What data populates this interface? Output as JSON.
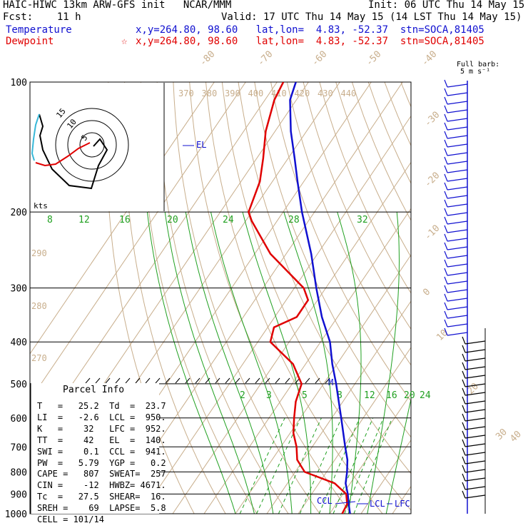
{
  "header": {
    "line1_left": "HAIC-HIWC 13km ARW-GFS init   NCAR/MMM",
    "line1_right": "Init: 06 UTC Thu 14 May 15",
    "line2_left": "Fcst:    11 h",
    "line2_right": "Valid: 17 UTC Thu 14 May 15 (14 LST Thu 14 May 15)",
    "temp_label": "Temperature",
    "temp_info": "x,y=264.80, 98.60   lat,lon=  4.83, -52.37  stn=SOCA,81405",
    "dew_label": "Dewpoint",
    "dew_info": "x,y=264.80, 98.60   lat,lon=  4.83, -52.37  stn=SOCA,81405",
    "dew_marker": "☆"
  },
  "barb_legend": {
    "line1": "Full barb:",
    "line2": "5 m s⁻¹"
  },
  "hodograph": {
    "units": "kts",
    "rings": [
      "5",
      "10",
      "15"
    ]
  },
  "parcel": {
    "title": "Parcel Info",
    "rows": [
      "T   =   25.2  Td  =  23.7",
      "LI  =   -2.6  LCL =  950.",
      "K   =    32   LFC =  952.",
      "TT  =    42   EL  =  140.",
      "SWI =    0.1  CCL =  941.",
      "PW  =   5.79  YGP =   0.2",
      "CAPE =   807  SWEAT=  257",
      "CIN =    -12  HWBZ= 4671.",
      "Tc  =   27.5  SHEAR=  16.",
      "SREH =    69  LAPSE=  5.8",
      "CELL = 101/14"
    ]
  },
  "chart_data": {
    "type": "skew-t log-p sounding",
    "y_axis": {
      "scale": "log",
      "ticks": [
        "100",
        "200",
        "300",
        "400",
        "500",
        "600",
        "700",
        "800",
        "900",
        "1000"
      ],
      "range_hPa": [
        100,
        1000
      ]
    },
    "isotherm_labels": [
      "-80",
      "-70",
      "-60",
      "-50",
      "-40",
      "-30",
      "-20",
      "-10",
      "0",
      "10",
      "20",
      "30",
      "40"
    ],
    "theta_labels_top": [
      "370",
      "380",
      "390",
      "400",
      "410",
      "420",
      "430",
      "440"
    ],
    "theta_labels_left": [
      "290",
      "280",
      "270"
    ],
    "mixing_ratio_labels_upper": [
      "8",
      "12",
      "16",
      "20",
      "24",
      "28",
      "32"
    ],
    "mixing_ratio_labels_lower": [
      "2",
      "3",
      "5",
      "8",
      "12",
      "16",
      "20",
      "24"
    ],
    "series": [
      {
        "name": "Temperature",
        "color": "#1010d0",
        "points": [
          [
            1000,
            26.5
          ],
          [
            950,
            24
          ],
          [
            900,
            21.5
          ],
          [
            850,
            18.5
          ],
          [
            800,
            16.5
          ],
          [
            750,
            14
          ],
          [
            700,
            10.5
          ],
          [
            600,
            3
          ],
          [
            500,
            -6
          ],
          [
            450,
            -11.5
          ],
          [
            400,
            -17
          ],
          [
            350,
            -25
          ],
          [
            300,
            -33
          ],
          [
            250,
            -42
          ],
          [
            200,
            -54
          ],
          [
            170,
            -62
          ],
          [
            150,
            -68
          ],
          [
            130,
            -75
          ],
          [
            110,
            -82
          ],
          [
            100,
            -84
          ]
        ]
      },
      {
        "name": "Dewpoint",
        "color": "#e00000",
        "points": [
          [
            1000,
            24
          ],
          [
            950,
            23.5
          ],
          [
            900,
            21
          ],
          [
            850,
            15
          ],
          [
            800,
            3
          ],
          [
            750,
            -2
          ],
          [
            700,
            -5
          ],
          [
            650,
            -9
          ],
          [
            600,
            -12
          ],
          [
            550,
            -15
          ],
          [
            500,
            -17
          ],
          [
            450,
            -24
          ],
          [
            400,
            -36
          ],
          [
            370,
            -38
          ],
          [
            350,
            -33
          ],
          [
            320,
            -33
          ],
          [
            300,
            -37
          ],
          [
            250,
            -55
          ],
          [
            210,
            -68
          ],
          [
            200,
            -71
          ],
          [
            170,
            -74
          ],
          [
            150,
            -78
          ],
          [
            130,
            -83
          ],
          [
            110,
            -87
          ],
          [
            100,
            -88
          ]
        ]
      }
    ],
    "annotations": [
      "EL",
      "M",
      "CCL",
      "LCL",
      "LFC"
    ],
    "colors": {
      "isotherms": "#c8ae8c",
      "mixing_ratio": "#20a020",
      "isobars": "#000000",
      "temperature": "#1010d0",
      "dewpoint": "#e00000"
    }
  }
}
